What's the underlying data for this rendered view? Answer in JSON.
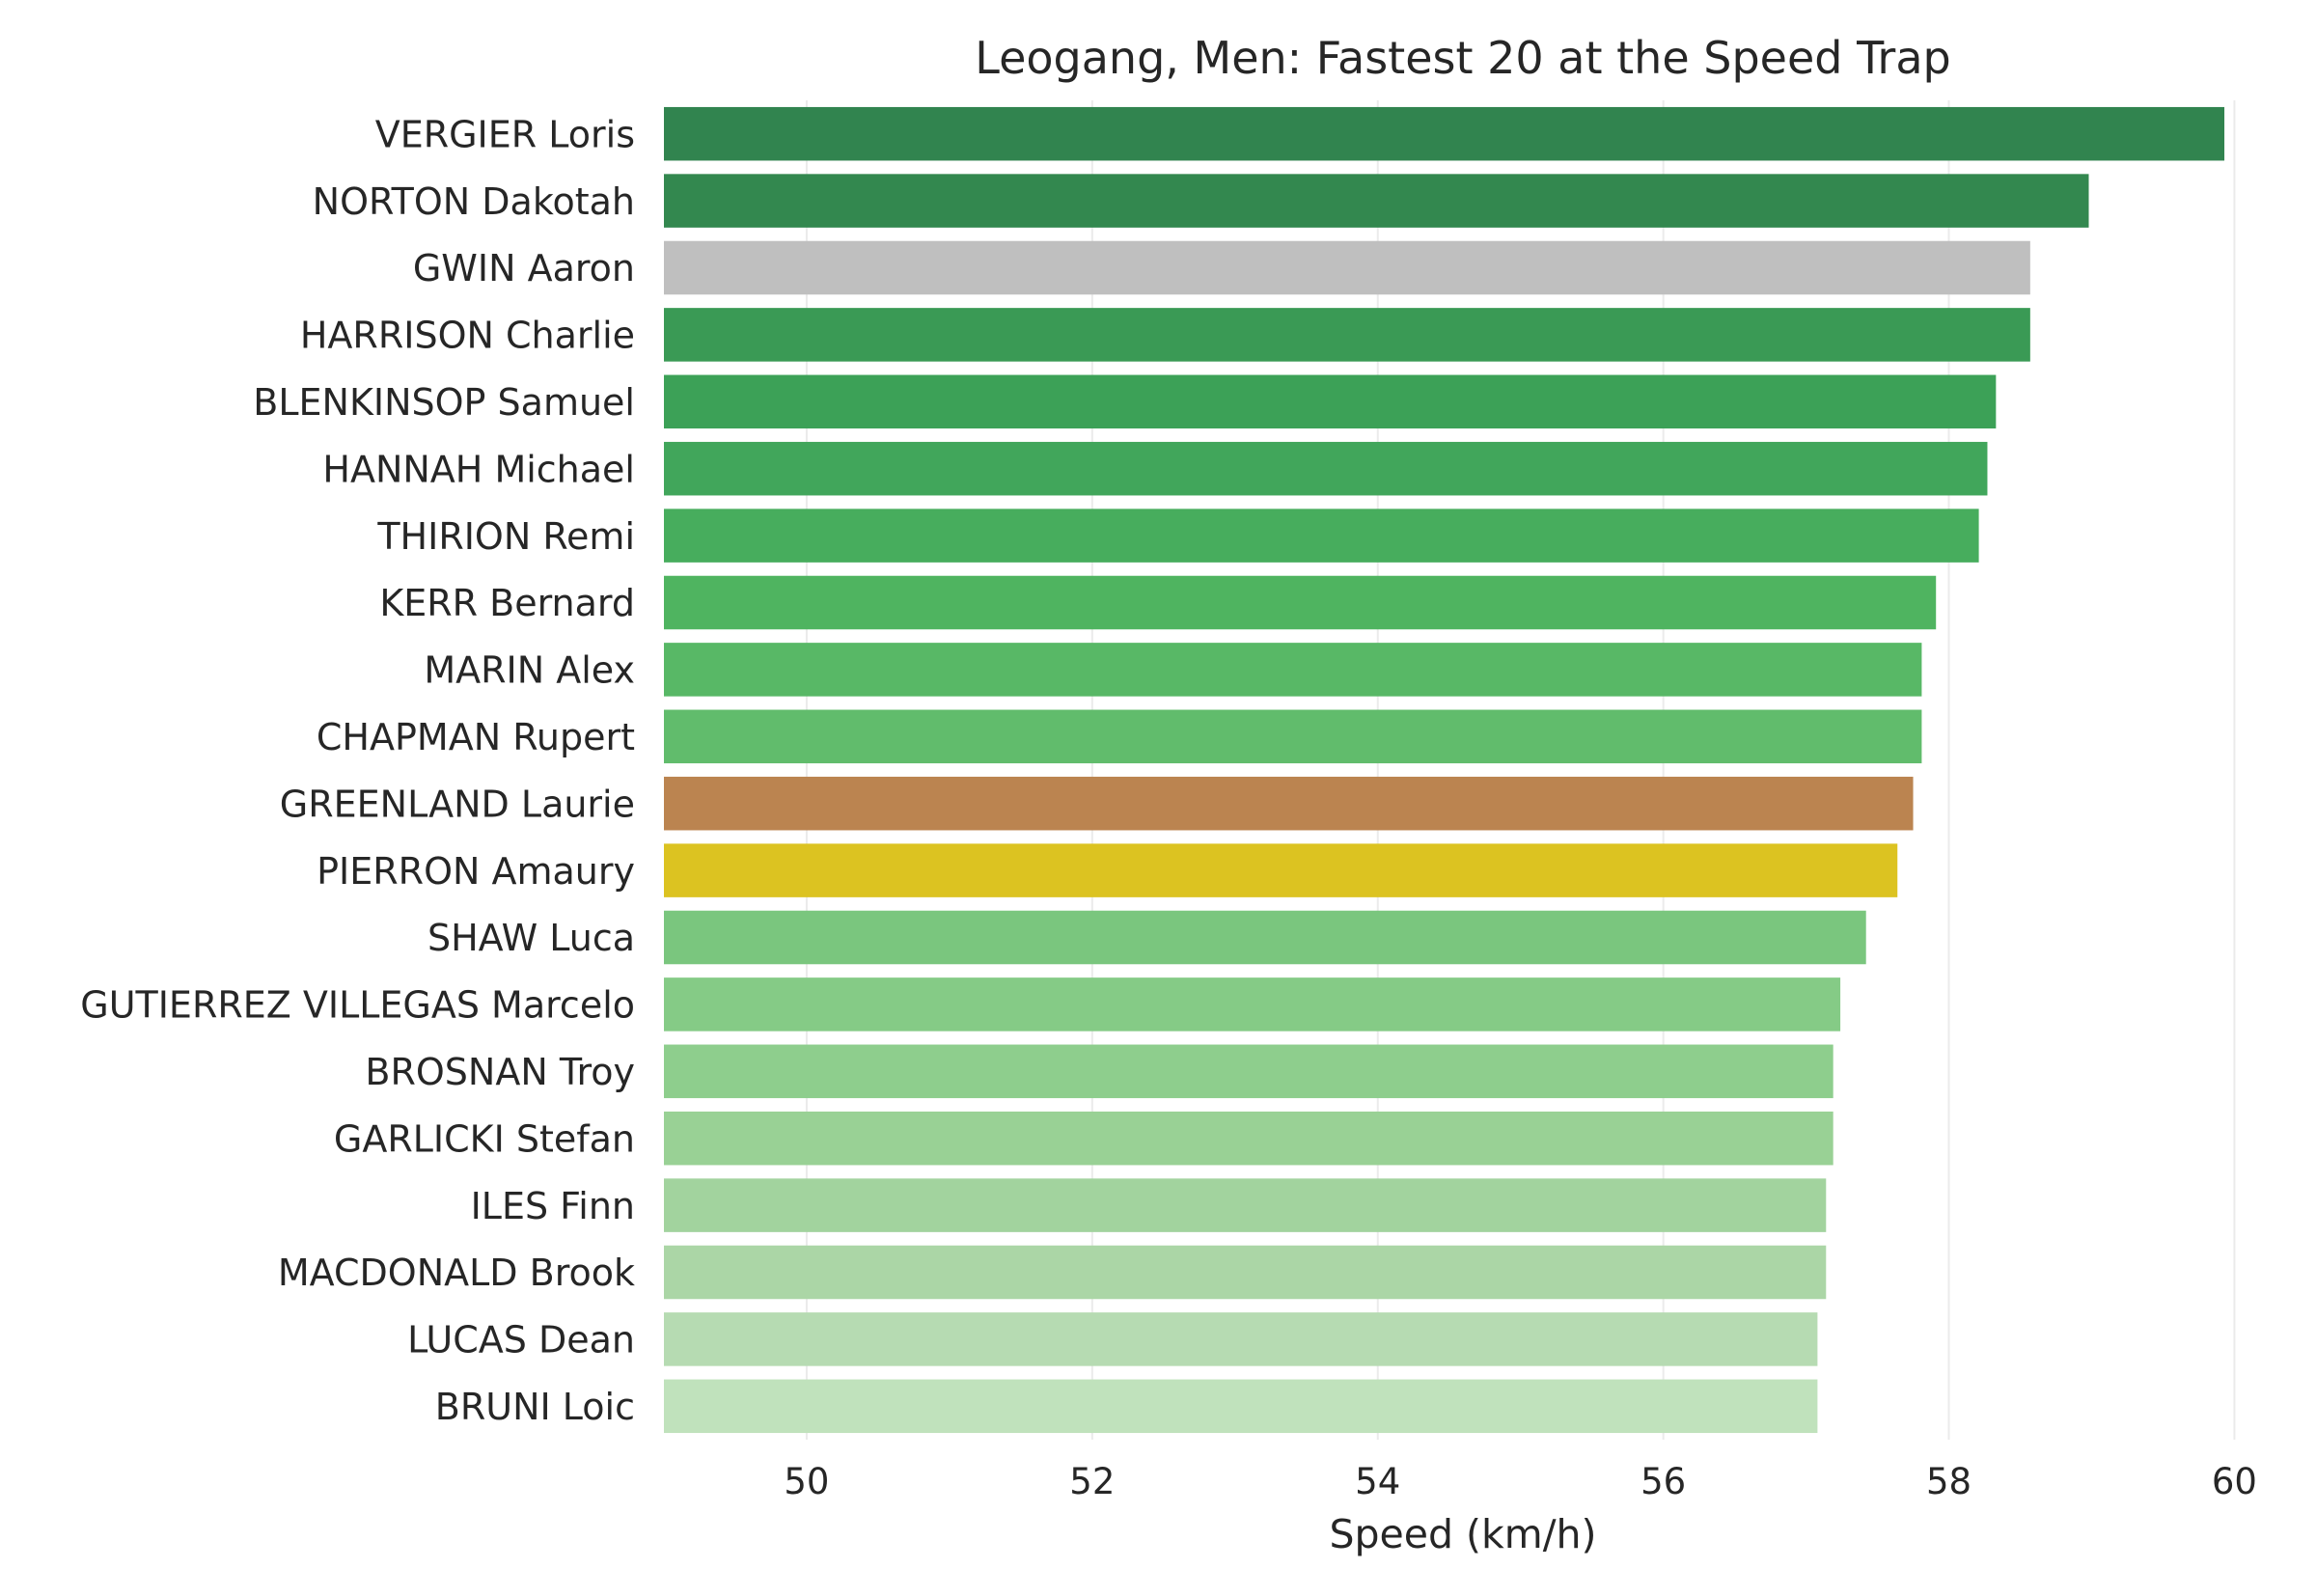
{
  "chart_data": {
    "type": "bar",
    "orientation": "horizontal",
    "title": "Leogang, Men: Fastest 20 at the Speed Trap",
    "xlabel": "Speed (km/h)",
    "ylabel": "",
    "xlim": [
      49,
      60.2
    ],
    "xticks": [
      "50",
      "52",
      "54",
      "56",
      "58",
      "60"
    ],
    "grid": "vertical",
    "categories": [
      "VERGIER Loris",
      "NORTON Dakotah",
      "GWIN Aaron",
      "HARRISON Charlie",
      "BLENKINSOP Samuel",
      "HANNAH Michael",
      "THIRION Remi",
      "KERR Bernard",
      "MARIN Alex",
      "CHAPMAN Rupert",
      "GREENLAND Laurie",
      "PIERRON Amaury",
      "SHAW Luca",
      "GUTIERREZ VILLEGAS Marcelo",
      "BROSNAN Troy",
      "GARLICKI Stefan",
      "ILES Finn",
      "MACDONALD Brook",
      "LUCAS Dean",
      "BRUNI Loic"
    ],
    "values": [
      59.93,
      58.98,
      58.57,
      58.57,
      58.33,
      58.27,
      58.21,
      57.91,
      57.81,
      57.81,
      57.75,
      57.64,
      57.42,
      57.24,
      57.19,
      57.19,
      57.14,
      57.14,
      57.08,
      57.08
    ],
    "colors": [
      "#31844f",
      "#33884f",
      "#bfbfbf",
      "#3a9a55",
      "#3ca157",
      "#41a65b",
      "#47ad5d",
      "#4fb460",
      "#58b866",
      "#61bc6c",
      "#bb8450",
      "#dcc321",
      "#7ac67e",
      "#85cb86",
      "#8ece8d",
      "#99d195",
      "#a2d39e",
      "#abd6a6",
      "#b6dbb2",
      "#c0e2bc"
    ]
  }
}
